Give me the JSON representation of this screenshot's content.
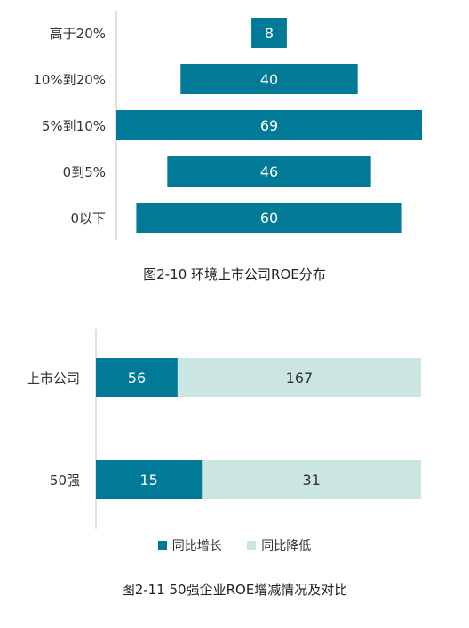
{
  "colors": {
    "dark": "#007a96",
    "light": "#cbe5e3",
    "axis": "#bfbfbf",
    "text": "#333333"
  },
  "chart_data": [
    {
      "type": "bar",
      "orientation": "horizontal",
      "layout": "centered",
      "title": "图2-10 环境上市公司ROE分布",
      "categories": [
        "高于20%",
        "10%到20%",
        "5%到10%",
        "0到5%",
        "0以下"
      ],
      "values": [
        8,
        40,
        69,
        46,
        60
      ]
    },
    {
      "type": "bar",
      "orientation": "horizontal",
      "stacked": true,
      "title": "图2-11 50强企业ROE增减情况及对比",
      "categories": [
        "上市公司",
        "50强"
      ],
      "series": [
        {
          "name": "同比增长",
          "values": [
            56,
            15
          ]
        },
        {
          "name": "同比降低",
          "values": [
            167,
            31
          ]
        }
      ],
      "legend": "bottom"
    }
  ]
}
